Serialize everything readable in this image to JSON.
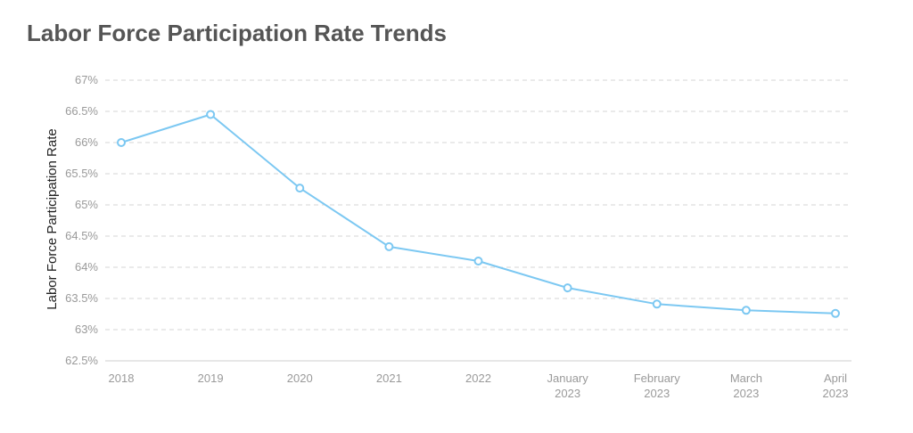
{
  "chart_data": {
    "type": "line",
    "title": "Labor Force Participation Rate Trends",
    "xlabel": "",
    "ylabel": "Labor Force Participation Rate",
    "categories": [
      "2018",
      "2019",
      "2020",
      "2021",
      "2022",
      "January 2023",
      "February 2023",
      "March 2023",
      "April 2023"
    ],
    "series": [
      {
        "values": [
          66.0,
          66.45,
          65.27,
          64.33,
          64.1,
          63.67,
          63.41,
          63.31,
          63.26
        ],
        "color": "#7cc8f2"
      }
    ],
    "ylim": [
      62.5,
      67
    ],
    "yticks": [
      "62.5%",
      "63%",
      "63.5%",
      "64%",
      "64.5%",
      "65%",
      "65.5%",
      "66%",
      "66.5%",
      "67%"
    ],
    "grid": true,
    "legend": "none"
  }
}
